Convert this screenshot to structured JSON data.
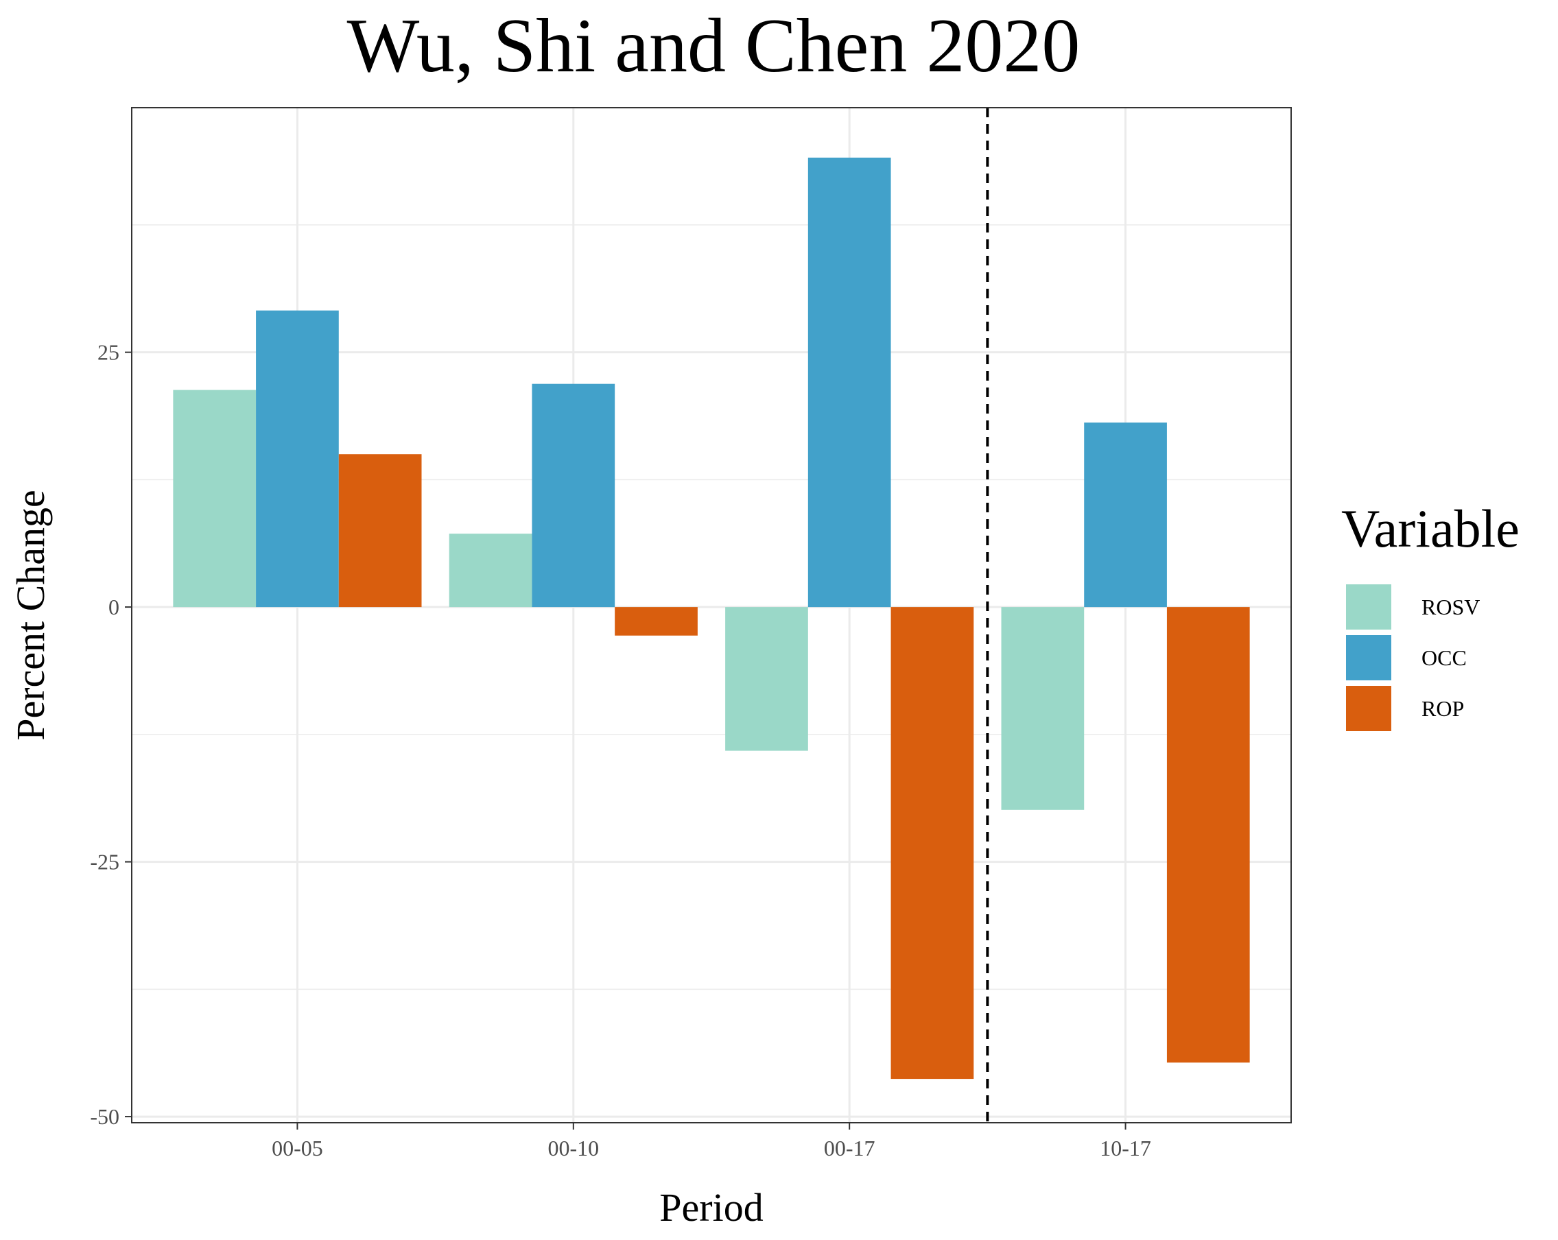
{
  "chart_data": {
    "type": "bar",
    "title": "Wu, Shi and Chen 2020",
    "xlabel": "Period",
    "ylabel": "Percent Change",
    "categories": [
      "00-05",
      "00-10",
      "00-17",
      "10-17"
    ],
    "series": [
      {
        "name": "ROSV",
        "color": "#9AD8C8",
        "values": [
          21.3,
          7.2,
          -14.1,
          -19.9
        ]
      },
      {
        "name": "OCC",
        "color": "#42A1CA",
        "values": [
          29.1,
          21.9,
          44.1,
          18.1
        ]
      },
      {
        "name": "ROP",
        "color": "#D95E0E",
        "values": [
          15.0,
          -2.8,
          -46.3,
          -44.7
        ]
      }
    ],
    "ylim": [
      -50.6,
      49.0
    ],
    "yticks": [
      -50,
      -25,
      0,
      25
    ],
    "yticklabels": [
      "-50",
      "-25",
      "0",
      "25"
    ],
    "reference_line": {
      "style": "dashed",
      "color": "#000000",
      "position": "between 00-17 and 10-17"
    },
    "legend": {
      "title": "Variable",
      "placement": "right"
    },
    "grid": true
  }
}
